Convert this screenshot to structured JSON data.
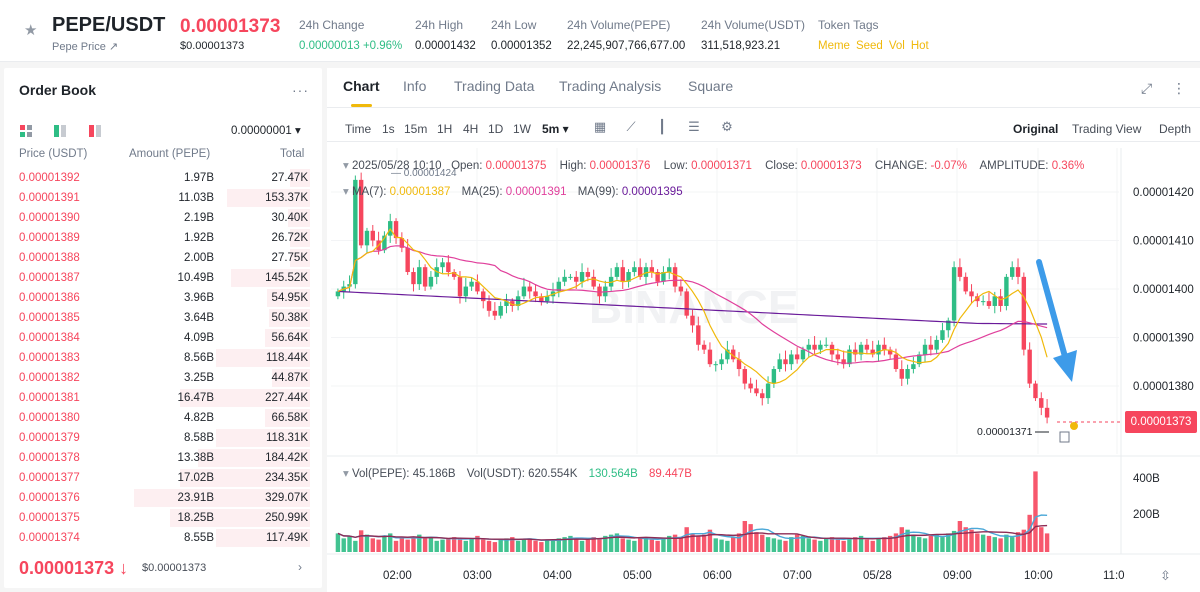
{
  "header": {
    "pair": "PEPE/USDT",
    "subtitle": "Pepe Price ↗",
    "last_price": "0.00001373",
    "last_price_usd": "$0.00001373",
    "stats": [
      {
        "label": "24h Change",
        "value": "0.00000013 +0.96%",
        "color": "green"
      },
      {
        "label": "24h High",
        "value": "0.00001432",
        "color": "default"
      },
      {
        "label": "24h Low",
        "value": "0.00001352",
        "color": "default"
      },
      {
        "label": "24h Volume(PEPE)",
        "value": "22,245,907,766,677.00",
        "color": "default"
      },
      {
        "label": "24h Volume(USDT)",
        "value": "311,518,923.21",
        "color": "default"
      }
    ],
    "token_tags_label": "Token Tags",
    "token_tags": [
      "Meme",
      "Seed",
      "Vol",
      "Hot"
    ]
  },
  "order_book": {
    "title": "Order Book",
    "more": "···",
    "precision": "0.00000001 ▾",
    "columns": [
      "Price (USDT)",
      "Amount (PEPE)",
      "Total"
    ],
    "rows": [
      {
        "price": "0.00001392",
        "amount": "1.97B",
        "total": "27.47K",
        "depth": 0.11
      },
      {
        "price": "0.00001391",
        "amount": "11.03B",
        "total": "153.37K",
        "depth": 0.46
      },
      {
        "price": "0.00001390",
        "amount": "2.19B",
        "total": "30.40K",
        "depth": 0.12
      },
      {
        "price": "0.00001389",
        "amount": "1.92B",
        "total": "26.72K",
        "depth": 0.11
      },
      {
        "price": "0.00001388",
        "amount": "2.00B",
        "total": "27.75K",
        "depth": 0.11
      },
      {
        "price": "0.00001387",
        "amount": "10.49B",
        "total": "145.52K",
        "depth": 0.44
      },
      {
        "price": "0.00001386",
        "amount": "3.96B",
        "total": "54.95K",
        "depth": 0.24
      },
      {
        "price": "0.00001385",
        "amount": "3.64B",
        "total": "50.38K",
        "depth": 0.23
      },
      {
        "price": "0.00001384",
        "amount": "4.09B",
        "total": "56.64K",
        "depth": 0.25
      },
      {
        "price": "0.00001383",
        "amount": "8.56B",
        "total": "118.44K",
        "depth": 0.52
      },
      {
        "price": "0.00001382",
        "amount": "3.25B",
        "total": "44.87K",
        "depth": 0.21
      },
      {
        "price": "0.00001381",
        "amount": "16.47B",
        "total": "227.44K",
        "depth": 0.72
      },
      {
        "price": "0.00001380",
        "amount": "4.82B",
        "total": "66.58K",
        "depth": 0.25
      },
      {
        "price": "0.00001379",
        "amount": "8.58B",
        "total": "118.31K",
        "depth": 0.52
      },
      {
        "price": "0.00001378",
        "amount": "13.38B",
        "total": "184.42K",
        "depth": 0.62
      },
      {
        "price": "0.00001377",
        "amount": "17.02B",
        "total": "234.35K",
        "depth": 0.72
      },
      {
        "price": "0.00001376",
        "amount": "23.91B",
        "total": "329.07K",
        "depth": 0.98
      },
      {
        "price": "0.00001375",
        "amount": "18.25B",
        "total": "250.99K",
        "depth": 0.78
      },
      {
        "price": "0.00001374",
        "amount": "8.55B",
        "total": "117.49K",
        "depth": 0.52
      }
    ],
    "last_price": "0.00001373 ↓",
    "last_price_usd": "$0.00001373",
    "chevron": "›"
  },
  "chart_panel": {
    "tabs": [
      "Chart",
      "Info",
      "Trading Data",
      "Trading Analysis",
      "Square"
    ],
    "active_tab": "Chart",
    "intervals": [
      "Time",
      "1s",
      "15m",
      "1H",
      "4H",
      "1D",
      "1W",
      "5m ▾"
    ],
    "active_interval": "5m ▾",
    "views": [
      "Original",
      "Trading View",
      "Depth"
    ],
    "active_view": "Original",
    "info": {
      "date": "2025/05/28 10:10",
      "open_label": "Open:",
      "open": "0.00001375",
      "high_label": "High:",
      "high": "0.00001376",
      "low_label": "Low:",
      "low": "0.00001371",
      "close_label": "Close:",
      "close": "0.00001373",
      "change_label": "CHANGE:",
      "change": "-0.07%",
      "amplitude_label": "AMPLITUDE:",
      "amplitude": "0.36%"
    },
    "ma": {
      "ma7_label": "MA(7):",
      "ma7": "0.00001387",
      "ma25_label": "MA(25):",
      "ma25": "0.00001391",
      "ma99_label": "MA(99):",
      "ma99": "0.00001395",
      "ma7_color": "#f0b90b",
      "ma25_color": "#e0409c",
      "ma99_color": "#6a1b9a"
    },
    "high_marker": "0.00001424",
    "low_marker": "0.00001371",
    "current_price_tag": "0.00001373",
    "volume": {
      "vol_pepe_label": "Vol(PEPE):",
      "vol_pepe": "45.186B",
      "vol_usdt_label": "Vol(USDT):",
      "vol_usdt": "620.554K",
      "ma5": "130.564B",
      "ma10": "89.447B"
    },
    "watermark": "BINANCE"
  },
  "chart_data": {
    "type": "candlestick",
    "x_ticks": [
      "02:00",
      "03:00",
      "04:00",
      "05:00",
      "06:00",
      "07:00",
      "05/28",
      "09:00",
      "10:00",
      "11:0"
    ],
    "y_ticks": [
      "0.00001420",
      "0.00001410",
      "0.00001400",
      "0.00001390",
      "0.00001380"
    ],
    "volume_ticks": [
      "400B",
      "200B"
    ],
    "ylim": [
      1.37e-05,
      1.43e-05
    ],
    "closes": [
      1.3995,
      1.4005,
      1.401,
      1.4225,
      1.409,
      1.412,
      1.41,
      1.408,
      1.411,
      1.414,
      1.4105,
      1.4085,
      1.4035,
      1.401,
      1.4045,
      1.4005,
      1.4025,
      1.4045,
      1.4055,
      1.4035,
      1.4025,
      1.3985,
      1.4005,
      1.4015,
      1.3995,
      1.3975,
      1.3955,
      1.3945,
      1.3965,
      1.3975,
      1.3965,
      1.3985,
      1.4005,
      1.3995,
      1.3985,
      1.3975,
      1.3985,
      1.3995,
      1.4015,
      1.4025,
      1.4025,
      1.4015,
      1.4035,
      1.4025,
      1.4005,
      1.3985,
      1.4005,
      1.4025,
      1.4045,
      1.4015,
      1.4035,
      1.4045,
      1.4025,
      1.4045,
      1.4035,
      1.4015,
      1.4035,
      1.4045,
      1.4005,
      1.3995,
      1.3945,
      1.3925,
      1.3885,
      1.3875,
      1.3845,
      1.3845,
      1.3855,
      1.3875,
      1.3855,
      1.3835,
      1.3805,
      1.3795,
      1.3785,
      1.3775,
      1.3805,
      1.3835,
      1.3855,
      1.3845,
      1.3865,
      1.3855,
      1.3875,
      1.3885,
      1.3875,
      1.3885,
      1.3885,
      1.3865,
      1.3855,
      1.3845,
      1.3875,
      1.3865,
      1.3885,
      1.3875,
      1.3865,
      1.3885,
      1.3875,
      1.3865,
      1.3835,
      1.3815,
      1.3835,
      1.3845,
      1.3865,
      1.3885,
      1.3875,
      1.3895,
      1.3915,
      1.3935,
      1.4045,
      1.4025,
      1.3995,
      1.3985,
      1.3975,
      1.3975,
      1.3965,
      1.3985,
      1.3965,
      1.4025,
      1.4045,
      1.4025,
      1.3875,
      1.3805,
      1.3775,
      1.3755,
      1.3735
    ],
    "volumes": [
      30,
      22,
      25,
      18,
      35,
      28,
      22,
      20,
      25,
      30,
      18,
      22,
      20,
      25,
      28,
      22,
      24,
      18,
      20,
      22,
      24,
      20,
      18,
      22,
      26,
      20,
      18,
      16,
      20,
      22,
      24,
      18,
      20,
      22,
      18,
      16,
      20,
      18,
      22,
      24,
      26,
      22,
      18,
      20,
      24,
      22,
      26,
      28,
      30,
      22,
      20,
      18,
      22,
      24,
      20,
      18,
      22,
      26,
      28,
      24,
      40,
      30,
      26,
      28,
      36,
      22,
      20,
      18,
      24,
      30,
      50,
      45,
      32,
      28,
      24,
      22,
      20,
      18,
      24,
      28,
      26,
      22,
      20,
      18,
      22,
      24,
      20,
      18,
      22,
      24,
      26,
      20,
      18,
      22,
      24,
      26,
      30,
      40,
      36,
      28,
      24,
      22,
      26,
      28,
      24,
      30,
      34,
      50,
      40,
      36,
      30,
      28,
      26,
      24,
      22,
      28,
      24,
      32,
      36,
      60,
      130,
      40,
      30,
      22,
      18
    ]
  }
}
